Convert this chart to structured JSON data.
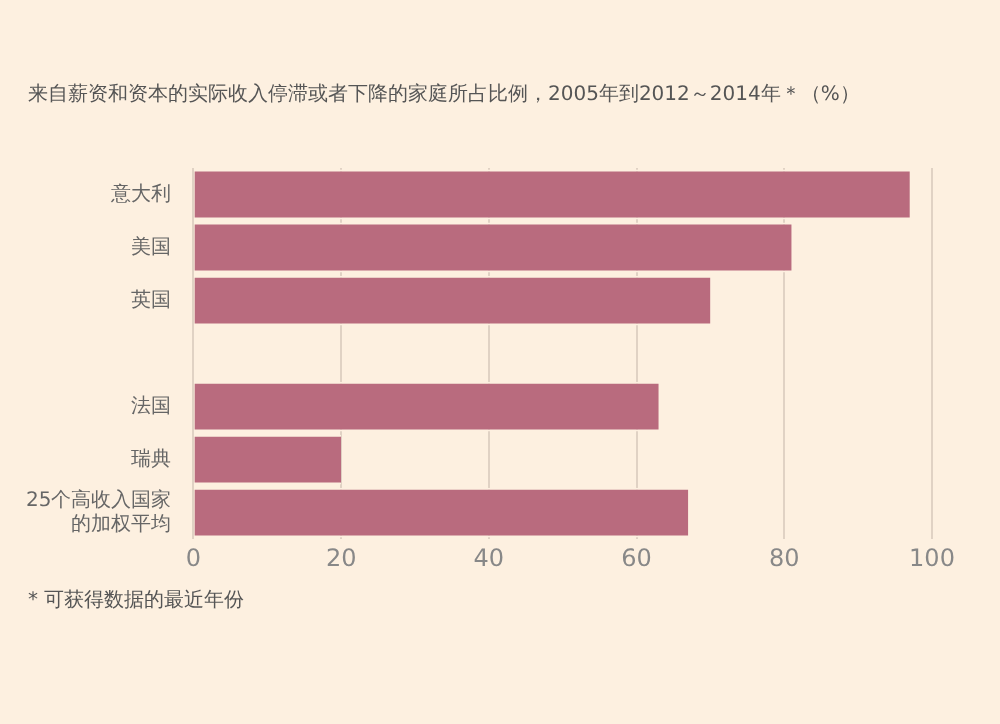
{
  "chart_data": {
    "type": "bar",
    "orientation": "horizontal",
    "title": "来自薪资和资本的实际收入停滞或者下降的家庭所占比例，2005年到2012～2014年＊（%）",
    "categories": [
      "意大利",
      "美国",
      "英国",
      null,
      "法国",
      "瑞典",
      "25个高收入国家的加权平均"
    ],
    "values": [
      97,
      81,
      70,
      null,
      63,
      20,
      67
    ],
    "color": "#b96b7e",
    "xlim": [
      0,
      100
    ],
    "xticks": [
      0,
      20,
      40,
      60,
      80,
      100
    ],
    "grid": "x",
    "annotations": [
      "* 可获得数据的最近年份"
    ]
  }
}
